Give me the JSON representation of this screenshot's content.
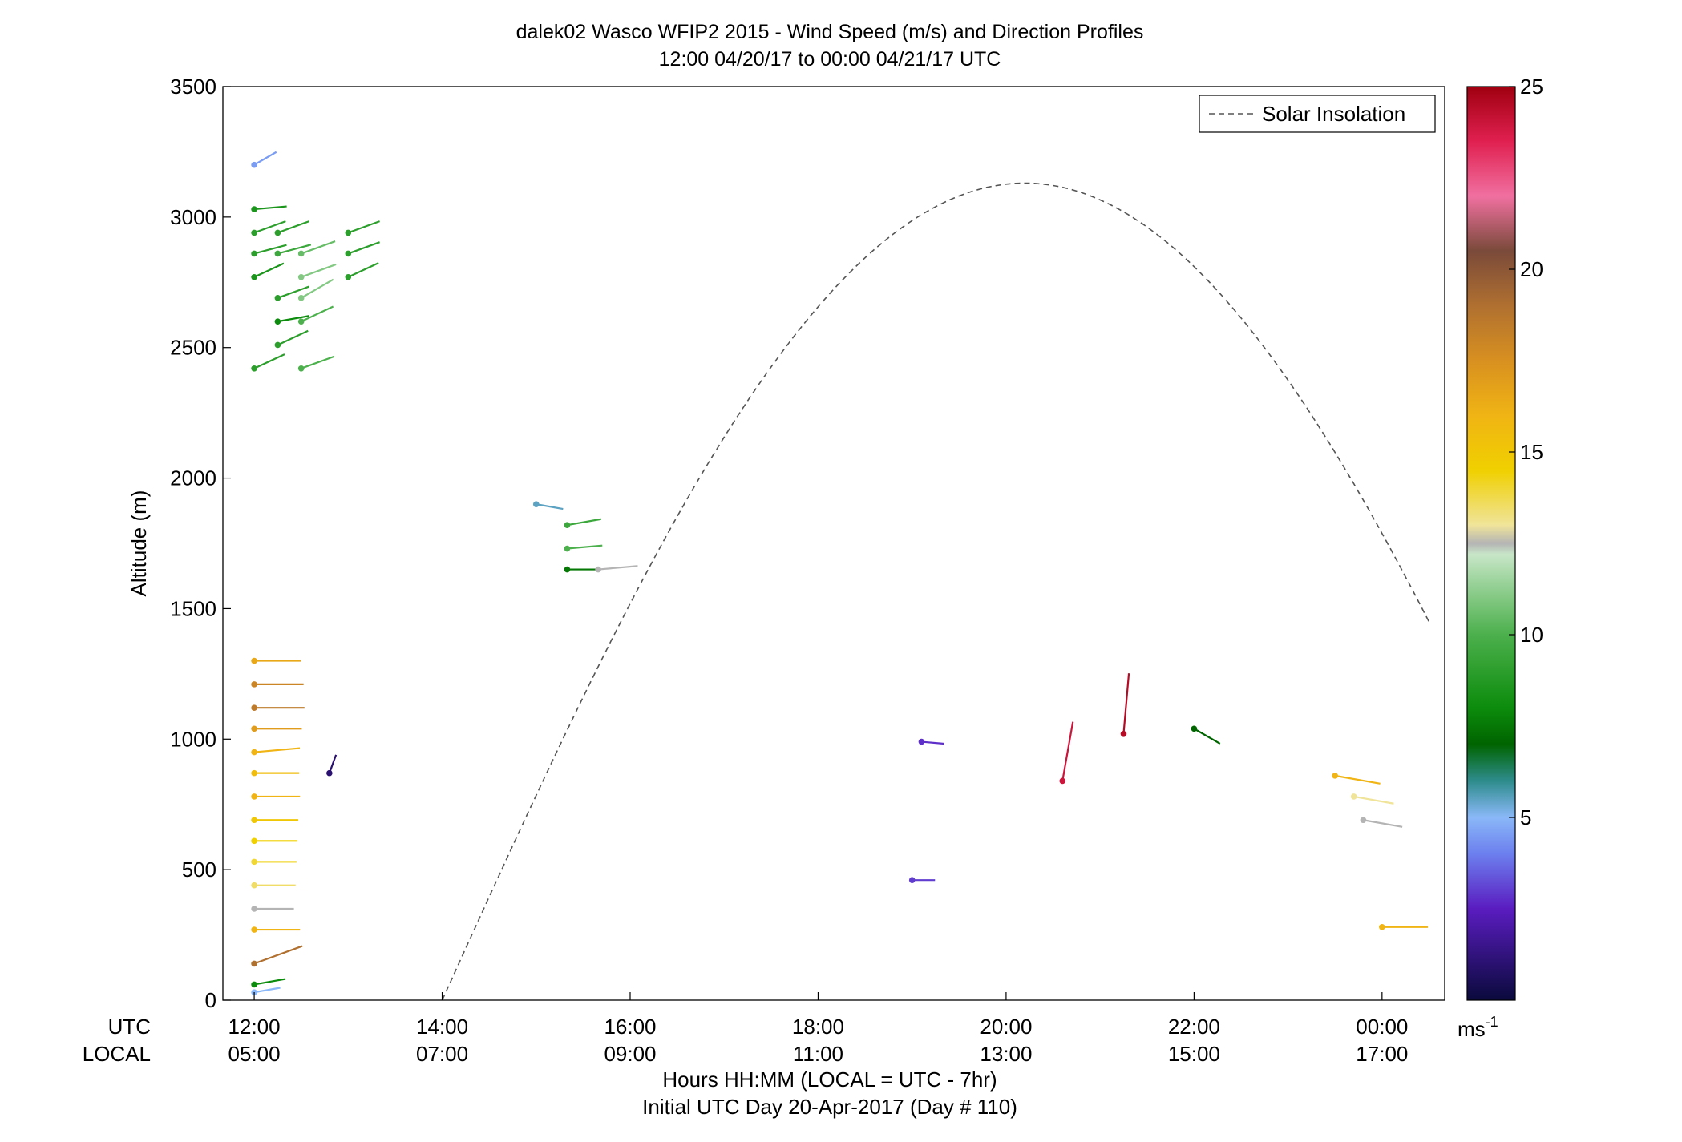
{
  "chart_data": {
    "type": "wind-barb-profile",
    "title": "dalek02 Wasco WFIP2 2015 - Wind Speed (m/s) and Direction Profiles",
    "subtitle": "12:00 04/20/17 to 00:00 04/21/17  UTC",
    "ylabel": "Altitude (m)",
    "xlabel": "Hours HH:MM  (LOCAL = UTC - 7hr)",
    "xlabel2": "Initial UTC Day 20-Apr-2017 (Day # 110)",
    "x_row_labels": [
      "UTC",
      "LOCAL"
    ],
    "xlim_hours": [
      11.6667,
      24.6667
    ],
    "ylim": [
      0,
      3500
    ],
    "y_ticks": [
      0,
      500,
      1000,
      1500,
      2000,
      2500,
      3000,
      3500
    ],
    "x_ticks": [
      {
        "utc_hour": 12,
        "utc": "12:00",
        "local": "05:00"
      },
      {
        "utc_hour": 14,
        "utc": "14:00",
        "local": "07:00"
      },
      {
        "utc_hour": 16,
        "utc": "16:00",
        "local": "09:00"
      },
      {
        "utc_hour": 18,
        "utc": "18:00",
        "local": "11:00"
      },
      {
        "utc_hour": 20,
        "utc": "20:00",
        "local": "13:00"
      },
      {
        "utc_hour": 22,
        "utc": "22:00",
        "local": "15:00"
      },
      {
        "utc_hour": 24,
        "utc": "00:00",
        "local": "17:00"
      }
    ],
    "legend": {
      "label": "Solar Insolation",
      "position": "top-right",
      "style": "dashed",
      "color": "#555555"
    },
    "solar_insolation_curve": {
      "start_hour": 14.0,
      "peak_hour": 20.2,
      "end_hour": 24.5,
      "peak_altitude": 3130,
      "end_altitude": 1460
    },
    "colorbar": {
      "range": [
        0,
        25
      ],
      "ticks": [
        5,
        10,
        15,
        20,
        25
      ],
      "unit": "ms-1",
      "stops": [
        {
          "v": 0,
          "c": "#0a0a3c"
        },
        {
          "v": 2.5,
          "c": "#5a1cc0"
        },
        {
          "v": 4,
          "c": "#6c7fee"
        },
        {
          "v": 5,
          "c": "#8ab8f8"
        },
        {
          "v": 6,
          "c": "#2e8c8c"
        },
        {
          "v": 7,
          "c": "#006400"
        },
        {
          "v": 8,
          "c": "#0c8c0c"
        },
        {
          "v": 10,
          "c": "#4cb04c"
        },
        {
          "v": 11.5,
          "c": "#9ed49e"
        },
        {
          "v": 12.2,
          "c": "#c8e6c8"
        },
        {
          "v": 12.5,
          "c": "#b4b4b4"
        },
        {
          "v": 13,
          "c": "#f0e49a"
        },
        {
          "v": 14.5,
          "c": "#f0d000"
        },
        {
          "v": 16,
          "c": "#f0b414"
        },
        {
          "v": 17.5,
          "c": "#d89020"
        },
        {
          "v": 19,
          "c": "#b07030"
        },
        {
          "v": 20.5,
          "c": "#7a4a3a"
        },
        {
          "v": 22,
          "c": "#f070a0"
        },
        {
          "v": 23.5,
          "c": "#e02050"
        },
        {
          "v": 25,
          "c": "#a00010"
        }
      ]
    },
    "series": [
      {
        "name": "wind barbs (hour UTC, altitude m, speed m/s, direction deg)",
        "values": [
          [
            12.0,
            3200,
            4.5,
            240
          ],
          [
            12.0,
            3030,
            8.5,
            265
          ],
          [
            12.0,
            2940,
            9,
            250
          ],
          [
            12.0,
            2860,
            9,
            255
          ],
          [
            12.0,
            2770,
            8.5,
            245
          ],
          [
            12.0,
            2420,
            9,
            245
          ],
          [
            12.25,
            2940,
            9,
            250
          ],
          [
            12.25,
            2860,
            9.5,
            255
          ],
          [
            12.25,
            2690,
            9,
            250
          ],
          [
            12.25,
            2600,
            8,
            260
          ],
          [
            12.25,
            2510,
            9,
            245
          ],
          [
            12.5,
            2860,
            10.5,
            250
          ],
          [
            12.5,
            2770,
            11,
            250
          ],
          [
            12.5,
            2690,
            11,
            240
          ],
          [
            12.5,
            2600,
            10,
            245
          ],
          [
            12.5,
            2420,
            10,
            250
          ],
          [
            13.0,
            2940,
            9,
            250
          ],
          [
            13.0,
            2860,
            9,
            250
          ],
          [
            13.0,
            2770,
            9,
            245
          ],
          [
            15.0,
            1900,
            5.5,
            280
          ],
          [
            15.33,
            1820,
            9.5,
            260
          ],
          [
            15.33,
            1730,
            10,
            265
          ],
          [
            15.33,
            1650,
            7.5,
            270
          ],
          [
            15.66,
            1650,
            12.5,
            265
          ],
          [
            12.0,
            1300,
            16.5,
            270
          ],
          [
            12.0,
            1210,
            18,
            270
          ],
          [
            12.0,
            1120,
            18.5,
            270
          ],
          [
            12.0,
            1040,
            17,
            270
          ],
          [
            12.0,
            950,
            16,
            265
          ],
          [
            12.0,
            870,
            15.5,
            270
          ],
          [
            12.0,
            780,
            16,
            270
          ],
          [
            12.0,
            690,
            15,
            270
          ],
          [
            12.0,
            610,
            14.5,
            270
          ],
          [
            12.0,
            530,
            14,
            270
          ],
          [
            12.0,
            440,
            13.5,
            270
          ],
          [
            12.0,
            350,
            12.5,
            270
          ],
          [
            12.0,
            270,
            16,
            270
          ],
          [
            12.0,
            140,
            19,
            250
          ],
          [
            12.0,
            60,
            8,
            260
          ],
          [
            12.0,
            30,
            5,
            260
          ],
          [
            12.8,
            870,
            1,
            200
          ],
          [
            20.6,
            840,
            24,
            190
          ],
          [
            21.25,
            1020,
            24.5,
            185
          ],
          [
            19.0,
            460,
            3,
            270
          ],
          [
            19.1,
            990,
            2.8,
            275
          ],
          [
            22.0,
            1040,
            7,
            300
          ],
          [
            23.5,
            860,
            16,
            280
          ],
          [
            23.7,
            780,
            13,
            280
          ],
          [
            23.8,
            690,
            12.5,
            280
          ],
          [
            24.0,
            280,
            16,
            270
          ]
        ]
      }
    ]
  }
}
